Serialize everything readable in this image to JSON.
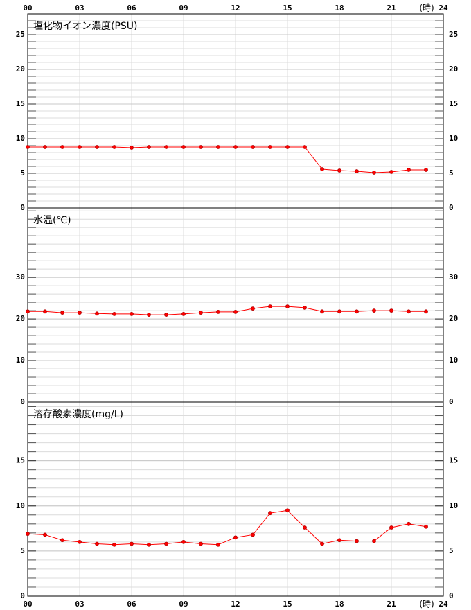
{
  "chart_data": [
    {
      "type": "line",
      "title": "塩化物イオン濃度(PSU)",
      "xlabel": "(時)",
      "x": [
        0,
        1,
        2,
        3,
        4,
        5,
        6,
        7,
        8,
        9,
        10,
        11,
        12,
        13,
        14,
        15,
        16,
        17,
        18,
        19,
        20,
        21,
        22,
        23
      ],
      "xlim": [
        0,
        24
      ],
      "xticks": [
        {
          "value": 0,
          "label": "00"
        },
        {
          "value": 3,
          "label": "03"
        },
        {
          "value": 6,
          "label": "06"
        },
        {
          "value": 9,
          "label": "09"
        },
        {
          "value": 12,
          "label": "12"
        },
        {
          "value": 15,
          "label": "15"
        },
        {
          "value": 18,
          "label": "18"
        },
        {
          "value": 21,
          "label": "21"
        },
        {
          "value": 24,
          "label": "24"
        }
      ],
      "xtick_side": "top",
      "ylim": [
        0,
        28
      ],
      "yticks": [
        0,
        5,
        10,
        15,
        20,
        25
      ],
      "series": [
        {
          "color": "#ff0000",
          "values": [
            8.8,
            8.8,
            8.8,
            8.8,
            8.8,
            8.8,
            8.7,
            8.8,
            8.8,
            8.8,
            8.8,
            8.8,
            8.8,
            8.8,
            8.8,
            8.8,
            8.8,
            5.6,
            5.4,
            5.3,
            5.1,
            5.2,
            5.5,
            5.5
          ]
        }
      ],
      "grid": true
    },
    {
      "type": "line",
      "title": "水温(℃)",
      "x": [
        0,
        1,
        2,
        3,
        4,
        5,
        6,
        7,
        8,
        9,
        10,
        11,
        12,
        13,
        14,
        15,
        16,
        17,
        18,
        19,
        20,
        21,
        22,
        23
      ],
      "xlim": [
        0,
        24
      ],
      "xticks": [
        0,
        3,
        6,
        9,
        12,
        15,
        18,
        21,
        24
      ],
      "ylim": [
        0,
        46.7
      ],
      "yticks": [
        0,
        10,
        20,
        30
      ],
      "series": [
        {
          "color": "#ff0000",
          "values": [
            21.8,
            21.8,
            21.5,
            21.5,
            21.3,
            21.2,
            21.2,
            21.0,
            21.0,
            21.2,
            21.5,
            21.7,
            21.7,
            22.5,
            23.0,
            23.0,
            22.7,
            21.8,
            21.8,
            21.8,
            22.0,
            22.0,
            21.8,
            21.8
          ]
        }
      ],
      "grid": true
    },
    {
      "type": "line",
      "title": "溶存酸素濃度(mg/L)",
      "xlabel": "(時)",
      "x": [
        0,
        1,
        2,
        3,
        4,
        5,
        6,
        7,
        8,
        9,
        10,
        11,
        12,
        13,
        14,
        15,
        16,
        17,
        18,
        19,
        20,
        21,
        22,
        23
      ],
      "xlim": [
        0,
        24
      ],
      "xticks": [
        {
          "value": 0,
          "label": "00"
        },
        {
          "value": 3,
          "label": "03"
        },
        {
          "value": 6,
          "label": "06"
        },
        {
          "value": 9,
          "label": "09"
        },
        {
          "value": 12,
          "label": "12"
        },
        {
          "value": 15,
          "label": "15"
        },
        {
          "value": 18,
          "label": "18"
        },
        {
          "value": 21,
          "label": "21"
        },
        {
          "value": 24,
          "label": "24"
        }
      ],
      "xtick_side": "bottom",
      "ylim": [
        0,
        21.5
      ],
      "yticks": [
        0,
        5,
        10,
        15
      ],
      "series": [
        {
          "color": "#ff0000",
          "values": [
            6.9,
            6.8,
            6.2,
            6.0,
            5.8,
            5.7,
            5.8,
            5.7,
            5.8,
            6.0,
            5.8,
            5.7,
            6.5,
            6.8,
            9.2,
            9.5,
            7.6,
            5.8,
            6.2,
            6.1,
            6.1,
            7.6,
            8.0,
            7.7
          ]
        }
      ],
      "grid": true
    }
  ]
}
